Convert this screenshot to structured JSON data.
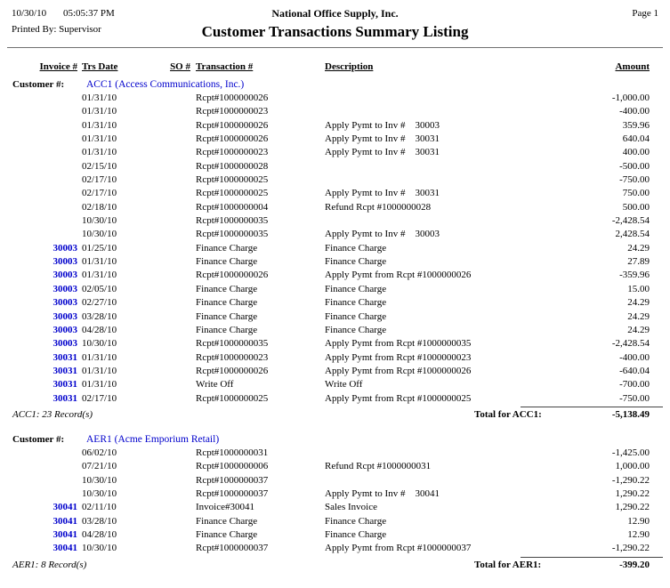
{
  "report": {
    "printed_date": "10/30/10",
    "printed_time": "05:05:37 PM",
    "company": "National Office Supply, Inc.",
    "page_label": "Page 1",
    "printed_by": "Printed By: Supervisor",
    "title": "Customer Transactions Summary Listing",
    "customer_label": "Customer #:",
    "columns": [
      "Invoice #",
      "Trs Date",
      "SO #",
      "Transaction #",
      "Description",
      "Amount"
    ],
    "colors": {
      "link_blue": "#0000cc",
      "text": "#000000",
      "rule_gray": "#707070"
    },
    "groups": [
      {
        "customer": "ACC1 (Access Communications, Inc.)",
        "record_count": "ACC1: 23 Record(s)",
        "total_label": "Total for ACC1:",
        "total_amount": "-5,138.49",
        "rows": [
          {
            "invoice": "",
            "trs_date": "01/31/10",
            "so": "",
            "transaction": "Rcpt#1000000026",
            "description": "",
            "amount": "-1,000.00"
          },
          {
            "invoice": "",
            "trs_date": "01/31/10",
            "so": "",
            "transaction": "Rcpt#1000000023",
            "description": "",
            "amount": "-400.00"
          },
          {
            "invoice": "",
            "trs_date": "01/31/10",
            "so": "",
            "transaction": "Rcpt#1000000026",
            "description": "Apply Pymt to Inv #    30003",
            "amount": "359.96"
          },
          {
            "invoice": "",
            "trs_date": "01/31/10",
            "so": "",
            "transaction": "Rcpt#1000000026",
            "description": "Apply Pymt to Inv #    30031",
            "amount": "640.04"
          },
          {
            "invoice": "",
            "trs_date": "01/31/10",
            "so": "",
            "transaction": "Rcpt#1000000023",
            "description": "Apply Pymt to Inv #    30031",
            "amount": "400.00"
          },
          {
            "invoice": "",
            "trs_date": "02/15/10",
            "so": "",
            "transaction": "Rcpt#1000000028",
            "description": "",
            "amount": "-500.00"
          },
          {
            "invoice": "",
            "trs_date": "02/17/10",
            "so": "",
            "transaction": "Rcpt#1000000025",
            "description": "",
            "amount": "-750.00"
          },
          {
            "invoice": "",
            "trs_date": "02/17/10",
            "so": "",
            "transaction": "Rcpt#1000000025",
            "description": "Apply Pymt to Inv #    30031",
            "amount": "750.00"
          },
          {
            "invoice": "",
            "trs_date": "02/18/10",
            "so": "",
            "transaction": "Rcpt#1000000004",
            "description": "Refund Rcpt #1000000028",
            "amount": "500.00"
          },
          {
            "invoice": "",
            "trs_date": "10/30/10",
            "so": "",
            "transaction": "Rcpt#1000000035",
            "description": "",
            "amount": "-2,428.54"
          },
          {
            "invoice": "",
            "trs_date": "10/30/10",
            "so": "",
            "transaction": "Rcpt#1000000035",
            "description": "Apply Pymt to Inv #    30003",
            "amount": "2,428.54"
          },
          {
            "invoice": "30003",
            "trs_date": "01/25/10",
            "so": "",
            "transaction": "Finance Charge",
            "description": "Finance Charge",
            "amount": "24.29"
          },
          {
            "invoice": "30003",
            "trs_date": "01/31/10",
            "so": "",
            "transaction": "Finance Charge",
            "description": "Finance Charge",
            "amount": "27.89"
          },
          {
            "invoice": "30003",
            "trs_date": "01/31/10",
            "so": "",
            "transaction": "Rcpt#1000000026",
            "description": "Apply Pymt from Rcpt #1000000026",
            "amount": "-359.96"
          },
          {
            "invoice": "30003",
            "trs_date": "02/05/10",
            "so": "",
            "transaction": "Finance Charge",
            "description": "Finance Charge",
            "amount": "15.00"
          },
          {
            "invoice": "30003",
            "trs_date": "02/27/10",
            "so": "",
            "transaction": "Finance Charge",
            "description": "Finance Charge",
            "amount": "24.29"
          },
          {
            "invoice": "30003",
            "trs_date": "03/28/10",
            "so": "",
            "transaction": "Finance Charge",
            "description": "Finance Charge",
            "amount": "24.29"
          },
          {
            "invoice": "30003",
            "trs_date": "04/28/10",
            "so": "",
            "transaction": "Finance Charge",
            "description": "Finance Charge",
            "amount": "24.29"
          },
          {
            "invoice": "30003",
            "trs_date": "10/30/10",
            "so": "",
            "transaction": "Rcpt#1000000035",
            "description": "Apply Pymt from Rcpt #1000000035",
            "amount": "-2,428.54"
          },
          {
            "invoice": "30031",
            "trs_date": "01/31/10",
            "so": "",
            "transaction": "Rcpt#1000000023",
            "description": "Apply Pymt from Rcpt #1000000023",
            "amount": "-400.00"
          },
          {
            "invoice": "30031",
            "trs_date": "01/31/10",
            "so": "",
            "transaction": "Rcpt#1000000026",
            "description": "Apply Pymt from Rcpt #1000000026",
            "amount": "-640.04"
          },
          {
            "invoice": "30031",
            "trs_date": "01/31/10",
            "so": "",
            "transaction": "Write Off",
            "description": "Write Off",
            "amount": "-700.00"
          },
          {
            "invoice": "30031",
            "trs_date": "02/17/10",
            "so": "",
            "transaction": "Rcpt#1000000025",
            "description": "Apply Pymt from Rcpt #1000000025",
            "amount": "-750.00"
          }
        ]
      },
      {
        "customer": "AER1 (Acme Emporium Retail)",
        "record_count": "AER1: 8 Record(s)",
        "total_label": "Total for AER1:",
        "total_amount": "-399.20",
        "rows": [
          {
            "invoice": "",
            "trs_date": "06/02/10",
            "so": "",
            "transaction": "Rcpt#1000000031",
            "description": "",
            "amount": "-1,425.00"
          },
          {
            "invoice": "",
            "trs_date": "07/21/10",
            "so": "",
            "transaction": "Rcpt#1000000006",
            "description": "Refund Rcpt #1000000031",
            "amount": "1,000.00"
          },
          {
            "invoice": "",
            "trs_date": "10/30/10",
            "so": "",
            "transaction": "Rcpt#1000000037",
            "description": "",
            "amount": "-1,290.22"
          },
          {
            "invoice": "",
            "trs_date": "10/30/10",
            "so": "",
            "transaction": "Rcpt#1000000037",
            "description": "Apply Pymt to Inv #    30041",
            "amount": "1,290.22"
          },
          {
            "invoice": "30041",
            "trs_date": "02/11/10",
            "so": "",
            "transaction": "Invoice#30041",
            "description": "Sales Invoice",
            "amount": "1,290.22"
          },
          {
            "invoice": "30041",
            "trs_date": "03/28/10",
            "so": "",
            "transaction": "Finance Charge",
            "description": "Finance Charge",
            "amount": "12.90"
          },
          {
            "invoice": "30041",
            "trs_date": "04/28/10",
            "so": "",
            "transaction": "Finance Charge",
            "description": "Finance Charge",
            "amount": "12.90"
          },
          {
            "invoice": "30041",
            "trs_date": "10/30/10",
            "so": "",
            "transaction": "Rcpt#1000000037",
            "description": "Apply Pymt from Rcpt #1000000037",
            "amount": "-1,290.22"
          }
        ]
      }
    ]
  }
}
